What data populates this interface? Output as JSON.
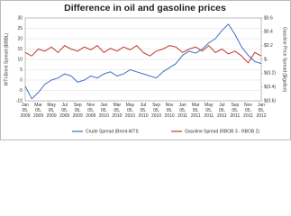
{
  "chart_data": {
    "type": "line",
    "title": "Difference in oil and gasoline prices",
    "ylabel": "WTI-Brent Spread ($/BBL)",
    "y2label": "Gasoline Price Spread ($/gallon)",
    "categories": [
      [
        "Jan",
        "05,",
        "2009"
      ],
      null,
      [
        "Mar",
        "05,",
        "2009"
      ],
      null,
      [
        "May",
        "05,",
        "2009"
      ],
      null,
      [
        "Jul",
        "05,",
        "2009"
      ],
      null,
      [
        "Sep",
        "05,",
        "2009"
      ],
      null,
      [
        "Nov",
        "05,",
        "2009"
      ],
      null,
      [
        "Jan",
        "05,",
        "2010"
      ],
      null,
      [
        "Mar",
        "05,",
        "2010"
      ],
      null,
      [
        "May",
        "05,",
        "2010"
      ],
      null,
      [
        "Jul",
        "05,",
        "2010"
      ],
      null,
      [
        "Sep",
        "05,",
        "2010"
      ],
      null,
      [
        "Nov",
        "05,",
        "2010"
      ],
      null,
      [
        "Jan",
        "05,",
        "2011"
      ],
      null,
      [
        "Mar",
        "05,",
        "2011"
      ],
      null,
      [
        "May",
        "05,",
        "2011"
      ],
      null,
      [
        "Jul",
        "05,",
        "2011"
      ],
      null,
      [
        "Sep",
        "05,",
        "2011"
      ],
      null,
      [
        "Nov",
        "05,",
        "2011"
      ],
      null,
      [
        "Jan",
        "05,",
        "2012"
      ]
    ],
    "series": [
      {
        "name": "Crude Spread (Brent-WTI)",
        "color": "#3a6fc4",
        "axis": "y",
        "values": [
          -3,
          -9,
          -6,
          -2,
          0,
          1,
          3,
          2,
          -1,
          0,
          2,
          1,
          3,
          4,
          2,
          3,
          5,
          4,
          3,
          2,
          1,
          4,
          6,
          8,
          12,
          14,
          13,
          15,
          18,
          20,
          24,
          27,
          22,
          16,
          12,
          9,
          8
        ]
      },
      {
        "name": "Gasoline Spread (RBOB 3 - RBOB 2)",
        "color": "#c0392b",
        "axis": "y2",
        "values": [
          0.1,
          0.05,
          0.15,
          0.12,
          0.18,
          0.1,
          0.2,
          0.15,
          0.12,
          0.18,
          0.14,
          0.2,
          0.1,
          0.16,
          0.12,
          0.18,
          0.14,
          0.2,
          0.1,
          0.05,
          0.12,
          0.15,
          0.2,
          0.18,
          0.1,
          0.15,
          0.18,
          0.12,
          0.2,
          0.1,
          0.15,
          0.08,
          0.12,
          0.05,
          -0.05,
          0.1,
          0.05
        ]
      }
    ],
    "ylim": [
      -10,
      30
    ],
    "yticks": [
      -10,
      -5,
      0,
      5,
      10,
      15,
      20,
      25,
      30
    ],
    "y2lim": [
      -0.6,
      0.6
    ],
    "y2ticks": [
      {
        "value": -0.6,
        "label": "$(0.6)"
      },
      {
        "value": -0.4,
        "label": "$(0.4)"
      },
      {
        "value": -0.2,
        "label": "$(0.2)"
      },
      {
        "value": 0,
        "label": "$-"
      },
      {
        "value": 0.2,
        "label": "$0.2"
      },
      {
        "value": 0.4,
        "label": "$0.4"
      },
      {
        "value": 0.6,
        "label": "$0.6"
      }
    ],
    "grid": true,
    "legend": "bottom"
  }
}
